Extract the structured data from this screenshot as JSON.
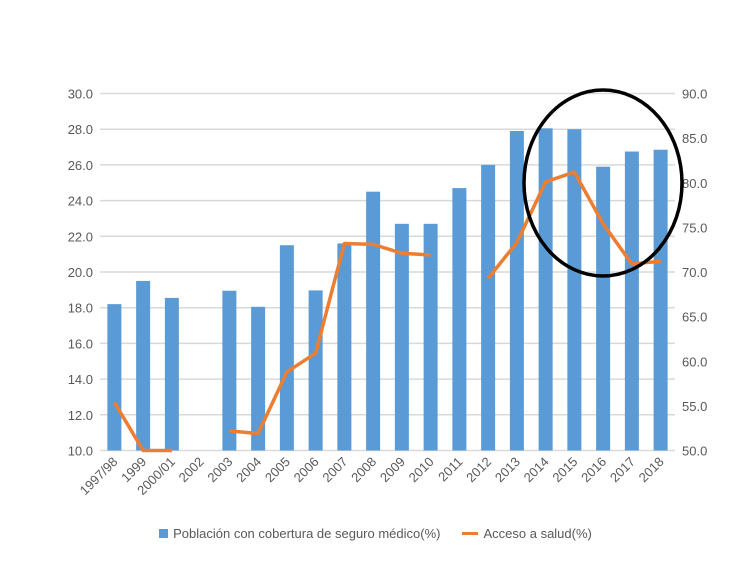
{
  "chart_data": {
    "type": "bar+line",
    "title": "",
    "categories": [
      "1997/98",
      "1999",
      "2000/01",
      "2002",
      "2003",
      "2004",
      "2005",
      "2006",
      "2007",
      "2008",
      "2009",
      "2010",
      "2011",
      "2012",
      "2013",
      "2014",
      "2015",
      "2016",
      "2017",
      "2018"
    ],
    "series": [
      {
        "name": "Población con cobertura de seguro médico(%)",
        "type": "bar",
        "axis": "left",
        "color": "#5b9bd5",
        "values": [
          18.2,
          19.5,
          18.55,
          null,
          18.95,
          18.05,
          21.5,
          18.97,
          21.6,
          24.5,
          22.7,
          22.7,
          24.7,
          26.0,
          27.9,
          28.05,
          28.0,
          25.9,
          26.75,
          26.85
        ]
      },
      {
        "name": "Acceso a salud(%)",
        "type": "line",
        "axis": "right",
        "color": "#ed7d31",
        "values": [
          55.4,
          50.0,
          50.0,
          null,
          52.2,
          51.9,
          58.8,
          60.9,
          73.2,
          73.1,
          72.1,
          71.9,
          null,
          69.3,
          73.3,
          80.1,
          81.2,
          75.4,
          70.9,
          71.2
        ]
      }
    ],
    "y_left": {
      "range": [
        10,
        30
      ],
      "ticks": [
        "10.0",
        "12.0",
        "14.0",
        "16.0",
        "18.0",
        "20.0",
        "22.0",
        "24.0",
        "26.0",
        "28.0",
        "30.0"
      ]
    },
    "y_right": {
      "range": [
        50,
        90
      ],
      "ticks": [
        "50.0",
        "55.0",
        "60.0",
        "65.0",
        "70.0",
        "75.0",
        "80.0",
        "85.0",
        "90.0"
      ]
    },
    "grid": true,
    "legend_position": "bottom",
    "annotation": {
      "shape": "ellipse",
      "color": "#000000",
      "highlights": [
        "2014",
        "2015",
        "2016",
        "2017"
      ]
    }
  }
}
